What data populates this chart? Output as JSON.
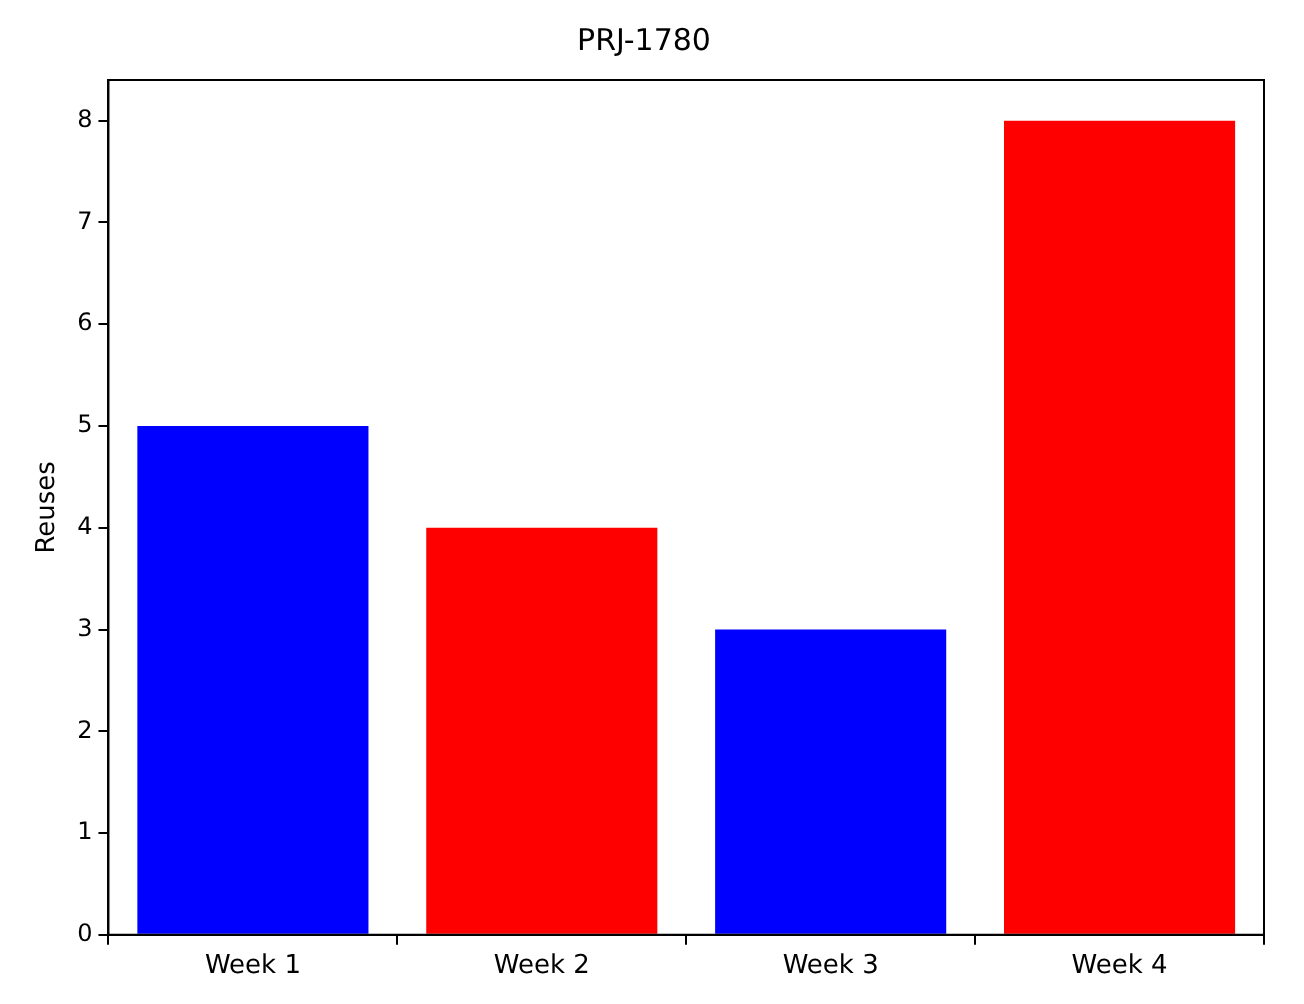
{
  "chart_data": {
    "type": "bar",
    "title": "PRJ-1780",
    "ylabel": "Reuses",
    "categories": [
      "Week 1",
      "Week 2",
      "Week 3",
      "Week 4"
    ],
    "values": [
      5,
      4,
      3,
      8
    ],
    "colors": [
      "#0000ff",
      "#ff0000",
      "#0000ff",
      "#ff0000"
    ],
    "ylim": [
      0,
      8.4
    ],
    "yticks": [
      0,
      1,
      2,
      3,
      4,
      5,
      6,
      7,
      8
    ]
  }
}
